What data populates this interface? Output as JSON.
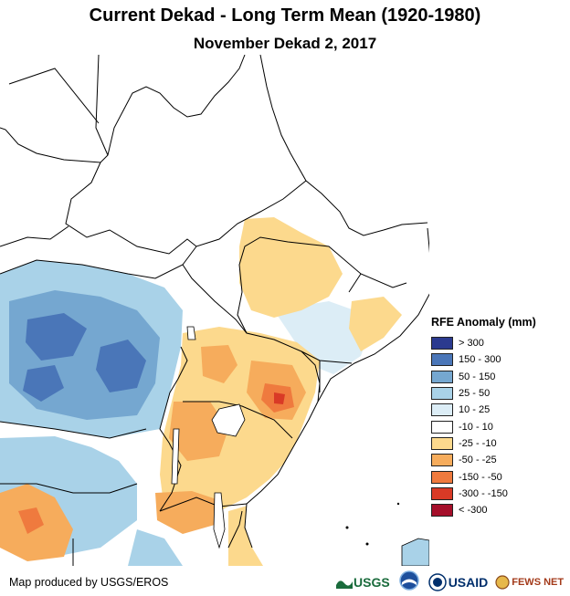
{
  "title": "Current Dekad - Long Term Mean (1920-1980)",
  "subtitle": "November Dekad 2, 2017",
  "legend": {
    "title": "RFE Anomaly (mm)",
    "items": [
      {
        "label": "> 300",
        "color": "#2b3a8f"
      },
      {
        "label": "150 - 300",
        "color": "#4a76b8"
      },
      {
        "label": "50 - 150",
        "color": "#75a7d0"
      },
      {
        "label": "25 - 50",
        "color": "#a9d2e8"
      },
      {
        "label": "10 - 25",
        "color": "#dcedf6"
      },
      {
        "label": "-10 - 10",
        "color": "#ffffff"
      },
      {
        "label": "-25 - -10",
        "color": "#fcd98d"
      },
      {
        "label": "-50 - -25",
        "color": "#f6ac5c"
      },
      {
        "label": "-150 - -50",
        "color": "#ef7a3e"
      },
      {
        "label": "-300 - -150",
        "color": "#d93a26"
      },
      {
        "label": "< -300",
        "color": "#a50f2a"
      }
    ]
  },
  "credit": "Map produced by USGS/EROS",
  "logos": {
    "usgs": "USGS",
    "usaid": "USAID",
    "fewsnet": "FEWS NET"
  }
}
